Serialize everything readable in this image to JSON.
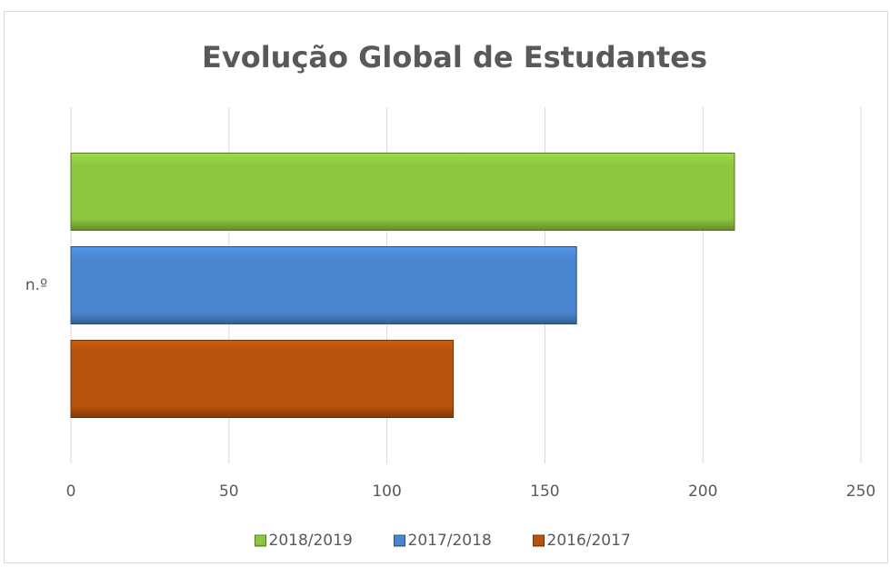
{
  "chart_data": {
    "type": "bar",
    "orientation": "horizontal",
    "title": "Evolução Global de Estudantes",
    "categories": [
      "n.º"
    ],
    "series": [
      {
        "name": "2018/2019",
        "color": "#8dc63f",
        "values": [
          210
        ]
      },
      {
        "name": "2017/2018",
        "color": "#4a86d0",
        "values": [
          160
        ]
      },
      {
        "name": "2016/2017",
        "color": "#b8520c",
        "values": [
          121
        ]
      }
    ],
    "xlim": [
      0,
      250
    ],
    "xticks": [
      0,
      50,
      100,
      150,
      200,
      250
    ],
    "grid": true,
    "legend": "bottom"
  }
}
